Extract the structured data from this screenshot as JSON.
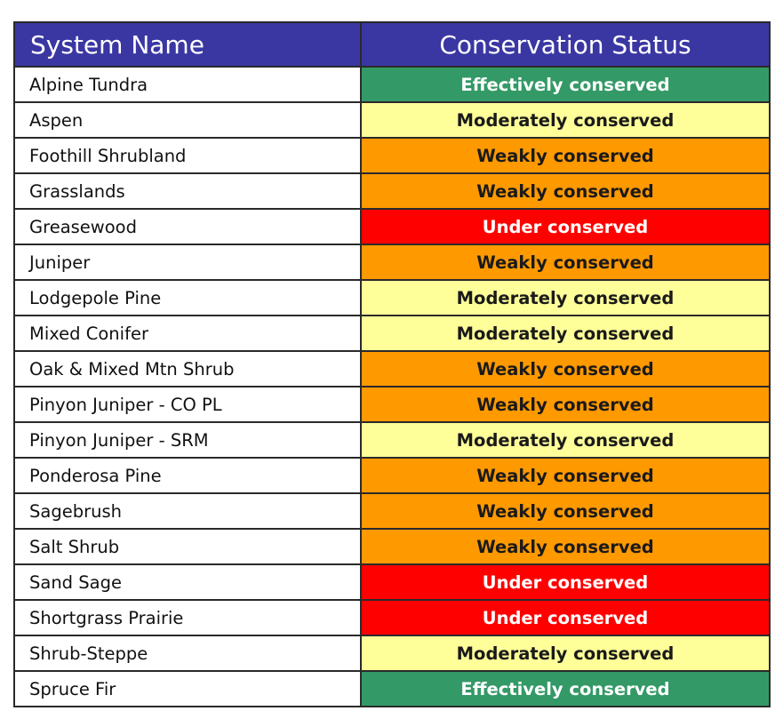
{
  "table": {
    "header": [
      "System Name",
      "Conservation Status"
    ],
    "rows": [
      {
        "name": "Alpine Tundra",
        "status": "Effectively conserved",
        "color": "#339966"
      },
      {
        "name": "Aspen",
        "status": "Moderately conserved",
        "color": "#ffff99"
      },
      {
        "name": "Foothill Shrubland",
        "status": "Weakly conserved",
        "color": "#ff9900"
      },
      {
        "name": "Grasslands",
        "status": "Weakly conserved",
        "color": "#ff9900"
      },
      {
        "name": "Greasewood",
        "status": "Under conserved",
        "color": "#ff0000"
      },
      {
        "name": "Juniper",
        "status": "Weakly conserved",
        "color": "#ff9900"
      },
      {
        "name": "Lodgepole Pine",
        "status": "Moderately conserved",
        "color": "#ffff99"
      },
      {
        "name": "Mixed Conifer",
        "status": "Moderately conserved",
        "color": "#ffff99"
      },
      {
        "name": "Oak & Mixed Mtn Shrub",
        "status": "Weakly conserved",
        "color": "#ff9900"
      },
      {
        "name": "Pinyon Juniper - CO PL",
        "status": "Weakly conserved",
        "color": "#ff9900"
      },
      {
        "name": "Pinyon Juniper - SRM",
        "status": "Moderately conserved",
        "color": "#ffff99"
      },
      {
        "name": "Ponderosa Pine",
        "status": "Weakly conserved",
        "color": "#ff9900"
      },
      {
        "name": "Sagebrush",
        "status": "Weakly conserved",
        "color": "#ff9900"
      },
      {
        "name": "Salt Shrub",
        "status": "Weakly conserved",
        "color": "#ff9900"
      },
      {
        "name": "Sand Sage",
        "status": "Under conserved",
        "color": "#ff0000"
      },
      {
        "name": "Shortgrass Prairie",
        "status": "Under conserved",
        "color": "#ff0000"
      },
      {
        "name": "Shrub-Steppe",
        "status": "Moderately conserved",
        "color": "#ffff99"
      },
      {
        "name": "Spruce Fir",
        "status": "Effectively conserved",
        "color": "#339966"
      }
    ]
  }
}
